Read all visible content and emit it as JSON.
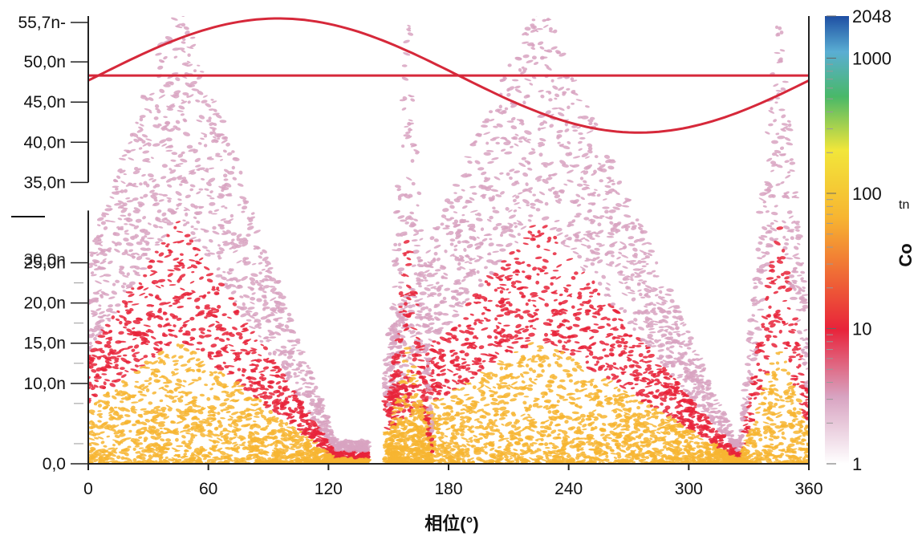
{
  "chart_data": {
    "type": "heatmap",
    "subtype": "phase-resolved partial discharge pattern (PRPD)",
    "xlabel": "相位(°)",
    "ylabel": "",
    "xlim": [
      0,
      360
    ],
    "ylim": [
      0,
      55.7
    ],
    "x_ticks": [
      0,
      60,
      120,
      180,
      240,
      300,
      360
    ],
    "x_tick_labels": [
      "0",
      "60",
      "120",
      "180",
      "240",
      "300",
      "360"
    ],
    "y_ticks": [
      0,
      10,
      15,
      20,
      25,
      35,
      40,
      45,
      50,
      55.7
    ],
    "y_tick_labels": [
      "0,0",
      "10,0n",
      "15,0n",
      "20,0n",
      "25,0n",
      "35,0n",
      "40,0n",
      "45,0n",
      "50,0n",
      "55,7n-"
    ],
    "y_overlap_label": "30,0n",
    "axis_break": true,
    "colorbar": {
      "label": "Co",
      "sub_label": "tn",
      "scale": "log",
      "range": [
        1,
        2048
      ],
      "tick_values": [
        1,
        10,
        100,
        1000,
        2048
      ],
      "tick_labels": [
        "1",
        "10",
        "100",
        "1000",
        "2048"
      ],
      "colors": [
        "#ffffff",
        "#d8a3c1",
        "#e8233a",
        "#f7b531",
        "#f2e63a",
        "#49b868",
        "#5aaed3",
        "#1e4fa3"
      ]
    },
    "reference_sine": {
      "amplitude_phase_deg_peak": 95,
      "trough_phase_deg": 268,
      "max": 55.7,
      "min": 41.5,
      "center": 48.3
    },
    "density_clusters": [
      {
        "phase_center": 45,
        "extent": [
          0,
          140
        ],
        "peak_amplitude": 35
      },
      {
        "phase_center": 225,
        "extent": [
          148,
          325
        ],
        "peak_amplitude": 35
      },
      {
        "phase_center": 160,
        "extent": [
          150,
          172
        ],
        "peak_amplitude": 30
      },
      {
        "phase_center": 345,
        "extent": [
          325,
          360
        ],
        "peak_amplitude": 30
      }
    ],
    "colors": {
      "low": "#d8a3c1",
      "mid": "#e8233a",
      "high": "#f7b531",
      "sine": "#d6283a"
    },
    "grid": false
  }
}
